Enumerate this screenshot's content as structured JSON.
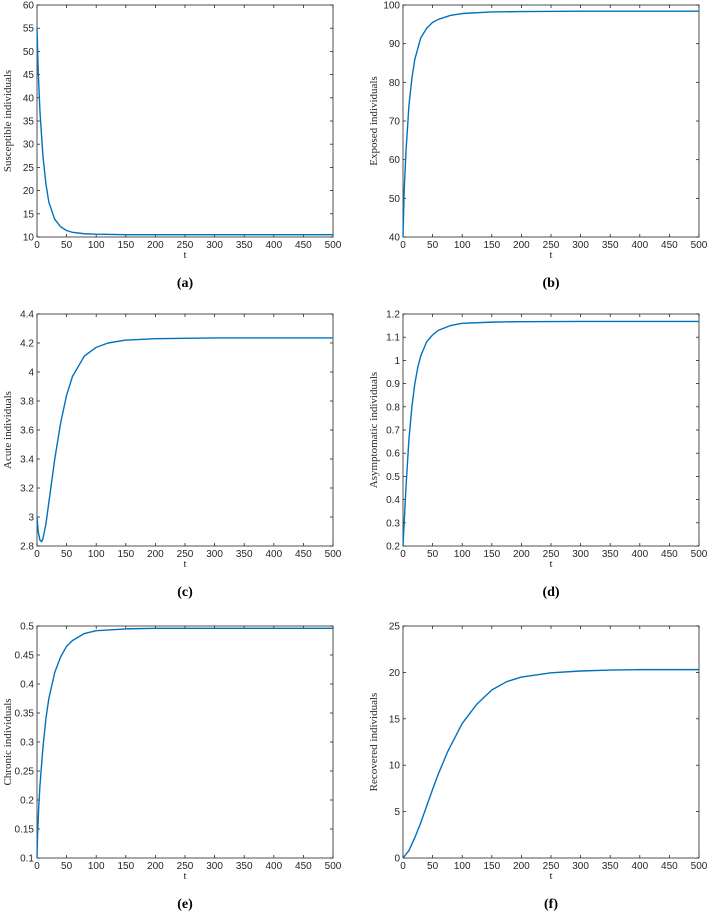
{
  "panels": [
    {
      "label": "(a)",
      "chart_data": {
        "type": "line",
        "xlabel": "t",
        "ylabel": "Susceptible individuals",
        "xlim": [
          0,
          500
        ],
        "ylim": [
          10,
          60
        ],
        "xticks": [
          0,
          50,
          100,
          150,
          200,
          250,
          300,
          350,
          400,
          450,
          500
        ],
        "yticks": [
          10,
          15,
          20,
          25,
          30,
          35,
          40,
          45,
          50,
          55,
          60
        ],
        "grid": false,
        "color": "#0072BD",
        "series": [
          {
            "x": [
              0,
              2,
              5,
              10,
              15,
              20,
              30,
              40,
              50,
              60,
              80,
              100,
              150,
              200,
              300,
              400,
              500
            ],
            "y": [
              55,
              46,
              37,
              27.5,
              21.5,
              17.5,
              13.8,
              12.2,
              11.4,
              11.0,
              10.7,
              10.6,
              10.5,
              10.5,
              10.5,
              10.5,
              10.5
            ]
          }
        ]
      }
    },
    {
      "label": "(b)",
      "chart_data": {
        "type": "line",
        "xlabel": "t",
        "ylabel": "Exposed individuals",
        "xlim": [
          0,
          500
        ],
        "ylim": [
          40,
          100
        ],
        "xticks": [
          0,
          50,
          100,
          150,
          200,
          250,
          300,
          350,
          400,
          450,
          500
        ],
        "yticks": [
          40,
          50,
          60,
          70,
          80,
          90,
          100
        ],
        "grid": false,
        "color": "#0072BD",
        "series": [
          {
            "x": [
              0,
              2,
              5,
              10,
              15,
              20,
              30,
              40,
              50,
              60,
              80,
              100,
              150,
              200,
              300,
              400,
              500
            ],
            "y": [
              40,
              52,
              62,
              74,
              81,
              86,
              91.5,
              94,
              95.5,
              96.3,
              97.3,
              97.8,
              98.2,
              98.3,
              98.4,
              98.4,
              98.4
            ]
          }
        ]
      }
    },
    {
      "label": "(c)",
      "chart_data": {
        "type": "line",
        "xlabel": "t",
        "ylabel": "Acute individuals",
        "xlim": [
          0,
          500
        ],
        "ylim": [
          2.8,
          4.4
        ],
        "xticks": [
          0,
          50,
          100,
          150,
          200,
          250,
          300,
          350,
          400,
          450,
          500
        ],
        "yticks": [
          2.8,
          3,
          3.2,
          3.4,
          3.6,
          3.8,
          4,
          4.2,
          4.4
        ],
        "grid": false,
        "color": "#0072BD",
        "series": [
          {
            "x": [
              0,
              2,
              5,
              8,
              10,
              15,
              20,
              30,
              40,
              50,
              60,
              80,
              100,
              120,
              150,
              200,
              300,
              400,
              500
            ],
            "y": [
              3.0,
              2.9,
              2.84,
              2.83,
              2.85,
              2.95,
              3.1,
              3.4,
              3.65,
              3.84,
              3.97,
              4.11,
              4.17,
              4.2,
              4.22,
              4.23,
              4.235,
              4.235,
              4.235
            ]
          }
        ]
      }
    },
    {
      "label": "(d)",
      "chart_data": {
        "type": "line",
        "xlabel": "t",
        "ylabel": "Asymptomatic individuals",
        "xlim": [
          0,
          500
        ],
        "ylim": [
          0.2,
          1.2
        ],
        "xticks": [
          0,
          50,
          100,
          150,
          200,
          250,
          300,
          350,
          400,
          450,
          500
        ],
        "yticks": [
          0.2,
          0.3,
          0.4,
          0.5,
          0.6,
          0.7,
          0.8,
          0.9,
          1,
          1.1,
          1.2
        ],
        "grid": false,
        "color": "#0072BD",
        "series": [
          {
            "x": [
              0,
              2,
              5,
              10,
              15,
              20,
              25,
              30,
              40,
              50,
              60,
              80,
              100,
              150,
              200,
              300,
              400,
              500
            ],
            "y": [
              0.2,
              0.3,
              0.45,
              0.66,
              0.8,
              0.9,
              0.97,
              1.02,
              1.08,
              1.11,
              1.13,
              1.15,
              1.16,
              1.165,
              1.167,
              1.168,
              1.168,
              1.168
            ]
          }
        ]
      }
    },
    {
      "label": "(e)",
      "chart_data": {
        "type": "line",
        "xlabel": "t",
        "ylabel": "Chronic individuals",
        "xlim": [
          0,
          500
        ],
        "ylim": [
          0.1,
          0.5
        ],
        "xticks": [
          0,
          50,
          100,
          150,
          200,
          250,
          300,
          350,
          400,
          450,
          500
        ],
        "yticks": [
          0.1,
          0.15,
          0.2,
          0.25,
          0.3,
          0.35,
          0.4,
          0.45,
          0.5
        ],
        "grid": false,
        "color": "#0072BD",
        "series": [
          {
            "x": [
              0,
              1,
              3,
              5,
              10,
              15,
              20,
              30,
              40,
              50,
              60,
              80,
              100,
              150,
              200,
              300,
              400,
              500
            ],
            "y": [
              0.1,
              0.14,
              0.19,
              0.225,
              0.29,
              0.34,
              0.375,
              0.42,
              0.447,
              0.465,
              0.475,
              0.487,
              0.492,
              0.495,
              0.496,
              0.496,
              0.496,
              0.496
            ]
          }
        ]
      }
    },
    {
      "label": "(f)",
      "chart_data": {
        "type": "line",
        "xlabel": "t",
        "ylabel": "Recovered individuals",
        "xlim": [
          0,
          500
        ],
        "ylim": [
          0,
          25
        ],
        "xticks": [
          0,
          50,
          100,
          150,
          200,
          250,
          300,
          350,
          400,
          450,
          500
        ],
        "yticks": [
          0,
          5,
          10,
          15,
          20,
          25
        ],
        "grid": false,
        "color": "#0072BD",
        "series": [
          {
            "x": [
              0,
              10,
              20,
              30,
              40,
              50,
              60,
              75,
              100,
              125,
              150,
              175,
              200,
              250,
              300,
              350,
              400,
              450,
              500
            ],
            "y": [
              0,
              0.8,
              2.2,
              3.8,
              5.6,
              7.4,
              9.1,
              11.4,
              14.5,
              16.6,
              18.1,
              19.0,
              19.5,
              19.95,
              20.15,
              20.25,
              20.3,
              20.3,
              20.3
            ]
          }
        ]
      }
    }
  ]
}
